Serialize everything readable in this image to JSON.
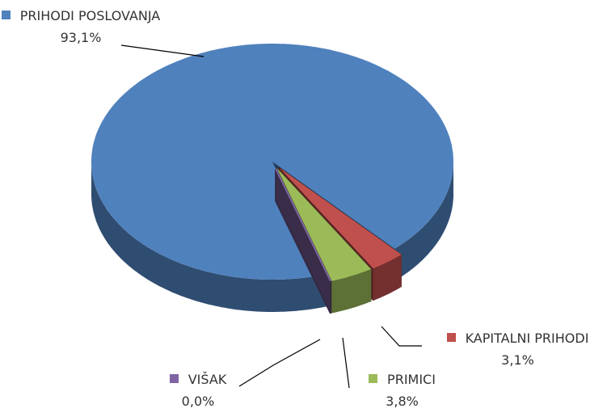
{
  "chart_data": {
    "type": "pie",
    "categories": [
      "PRIHODI POSLOVANJA",
      "KAPITALNI PRIHODI",
      "PRIMICI",
      "VIŠAK"
    ],
    "values": [
      93.1,
      3.1,
      3.8,
      0.0
    ],
    "value_labels": [
      "93,1%",
      "3,1%",
      "3,8%",
      "0,0%"
    ],
    "colors": [
      "#4f81bd",
      "#c0504d",
      "#9bbb59",
      "#8064a2"
    ]
  }
}
